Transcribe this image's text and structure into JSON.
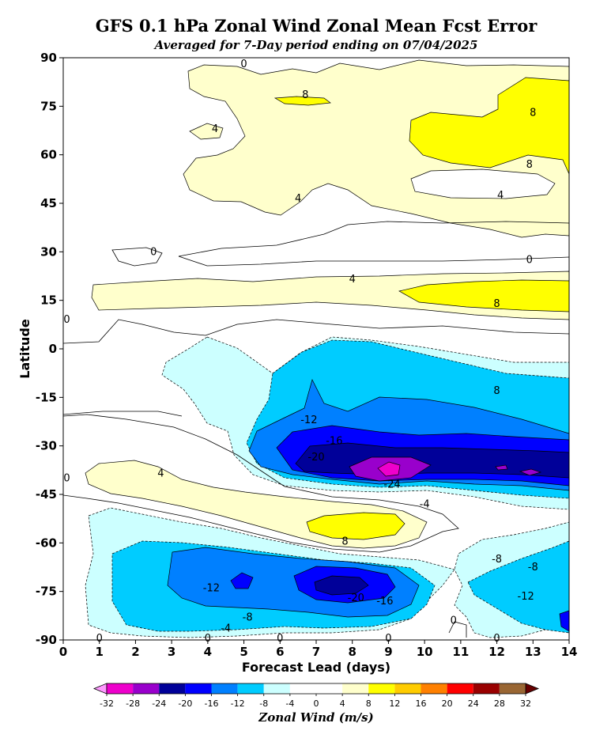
{
  "chart_data": {
    "type": "heatmap",
    "title": "GFS 0.1 hPa Zonal Wind Zonal Mean Fcst Error",
    "subtitle": "Averaged for 7-Day period ending on 07/04/2025",
    "xlabel": "Forecast Lead (days)",
    "ylabel": "Latitude",
    "xlim": [
      0,
      14
    ],
    "ylim": [
      -90,
      90
    ],
    "x_ticks": [
      0,
      1,
      2,
      3,
      4,
      5,
      6,
      7,
      8,
      9,
      10,
      11,
      12,
      13,
      14
    ],
    "y_ticks": [
      90,
      75,
      60,
      45,
      30,
      15,
      0,
      -15,
      -30,
      -45,
      -60,
      -75,
      -90
    ],
    "colorbar": {
      "title": "Zonal Wind (m/s)",
      "ticks": [
        -32,
        -28,
        -24,
        -20,
        -16,
        -12,
        -8,
        -4,
        0,
        4,
        8,
        12,
        16,
        20,
        24,
        28,
        32
      ],
      "colors": [
        "#ee00cc",
        "#9900cc",
        "#000099",
        "#0000ff",
        "#0080ff",
        "#00ccff",
        "#ccffff",
        "#ffffff",
        "#ffffff",
        "#ffffcc",
        "#ffff00",
        "#ffcc00",
        "#ff8000",
        "#ff0000",
        "#990000",
        "#996633"
      ],
      "under_color": "#ff99ff",
      "over_color": "#660000"
    },
    "contour_labels": [
      {
        "value": "8",
        "x": 6.7,
        "y": 78.5
      },
      {
        "value": "4",
        "x": 4.2,
        "y": 68
      },
      {
        "value": "8",
        "x": 13.0,
        "y": 73
      },
      {
        "value": "8",
        "x": 12.9,
        "y": 57
      },
      {
        "value": "4",
        "x": 12.1,
        "y": 47.5
      },
      {
        "value": "4",
        "x": 6.5,
        "y": 46.5
      },
      {
        "value": "0",
        "x": 2.5,
        "y": 30
      },
      {
        "value": "0",
        "x": 12.9,
        "y": 27.5
      },
      {
        "value": "4",
        "x": 8.0,
        "y": 21.5
      },
      {
        "value": "8",
        "x": 12.0,
        "y": 14
      },
      {
        "value": "0",
        "x": 5.0,
        "y": 88
      },
      {
        "value": "0",
        "x": 0.1,
        "y": 9
      },
      {
        "value": "8",
        "x": 12.0,
        "y": -13
      },
      {
        "value": "-12",
        "x": 6.8,
        "y": -22
      },
      {
        "value": "-16",
        "x": 7.5,
        "y": -28.5
      },
      {
        "value": "-20",
        "x": 7.0,
        "y": -33.5
      },
      {
        "value": "-24",
        "x": 9.1,
        "y": -42
      },
      {
        "value": "-4",
        "x": 10.0,
        "y": -48
      },
      {
        "value": "4",
        "x": 2.7,
        "y": -38.5
      },
      {
        "value": "0",
        "x": 0.1,
        "y": -40
      },
      {
        "value": "8",
        "x": 7.8,
        "y": -59.5
      },
      {
        "value": "-8",
        "x": 12.0,
        "y": -65
      },
      {
        "value": "-8",
        "x": 13.0,
        "y": -67.5
      },
      {
        "value": "-12",
        "x": 4.1,
        "y": -74
      },
      {
        "value": "-20",
        "x": 8.1,
        "y": -77
      },
      {
        "value": "-16",
        "x": 8.9,
        "y": -78
      },
      {
        "value": "-12",
        "x": 12.8,
        "y": -76.5
      },
      {
        "value": "-8",
        "x": 5.1,
        "y": -83
      },
      {
        "value": "-4",
        "x": 4.5,
        "y": -86.5
      },
      {
        "value": "0",
        "x": 1.0,
        "y": -89.5
      },
      {
        "value": "0",
        "x": 4.0,
        "y": -89.5
      },
      {
        "value": "0",
        "x": 6.0,
        "y": -89.5
      },
      {
        "value": "0",
        "x": 9.0,
        "y": -89.5
      },
      {
        "value": "0",
        "x": 10.8,
        "y": -84
      },
      {
        "value": "0",
        "x": 12.0,
        "y": -89.5
      }
    ],
    "regions": [
      {
        "level": "4 to 8",
        "color": "#ffffcc",
        "lead_days": [
          3.5,
          14
        ],
        "lat": [
          45,
          83
        ]
      },
      {
        "level": "8 to 12",
        "color": "#ffff00",
        "lead_days": [
          9.5,
          14
        ],
        "lat": [
          50,
          80
        ]
      },
      {
        "level": "4 to 8",
        "color": "#ffffcc",
        "lead_days": [
          0.8,
          14
        ],
        "lat": [
          8,
          24
        ]
      },
      {
        "level": "8 to 12",
        "color": "#ffff00",
        "lead_days": [
          9.5,
          14
        ],
        "lat": [
          12,
          20
        ]
      },
      {
        "level": "-4 to -8",
        "color": "#ccffff",
        "lead_days": [
          2.7,
          14
        ],
        "lat": [
          -48,
          4
        ]
      },
      {
        "level": "-12 to -16",
        "color": "#0080ff",
        "lead_days": [
          5.3,
          14
        ],
        "lat": [
          -46,
          -15
        ]
      },
      {
        "level": "-20 to -24",
        "color": "#000099",
        "lead_days": [
          6.3,
          14
        ],
        "lat": [
          -44,
          -29
        ]
      },
      {
        "level": "-28 to -32",
        "color": "#9900cc",
        "lead_days": [
          8.0,
          10.2
        ],
        "lat": [
          -41,
          -33
        ]
      },
      {
        "level": "4 to 8",
        "color": "#ffffcc",
        "lead_days": [
          0.5,
          9.8
        ],
        "lat": [
          -62,
          -35
        ]
      },
      {
        "level": "8 to 12",
        "color": "#ffff00",
        "lead_days": [
          6.8,
          9.5
        ],
        "lat": [
          -61,
          -52
        ]
      },
      {
        "level": "-4 to -8",
        "color": "#ccffff",
        "lead_days": [
          0.7,
          14
        ],
        "lat": [
          -89,
          -49
        ]
      },
      {
        "level": "-12 to -16",
        "color": "#0080ff",
        "lead_days": [
          3.0,
          14
        ],
        "lat": [
          -85,
          -61
        ]
      },
      {
        "level": "-20 to -24",
        "color": "#000099",
        "lead_days": [
          6.9,
          8.6
        ],
        "lat": [
          -79,
          -72
        ]
      }
    ]
  }
}
